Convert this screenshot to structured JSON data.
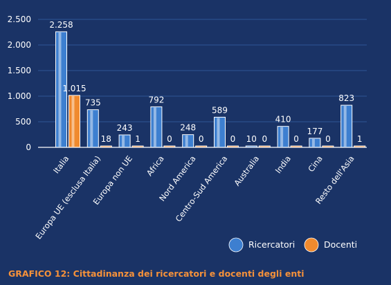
{
  "colors": {
    "background": "#1a3366",
    "ricercatori": "#3d7fd0",
    "docenti": "#f08a2e",
    "grid": "#2f5596",
    "axis": "#ffffff",
    "caption": "#f5913a"
  },
  "caption": "GRAFICO 12: Cittadinanza dei ricercatori e docenti degli enti",
  "chart_data": {
    "type": "bar",
    "title": "",
    "xlabel": "",
    "ylabel": "",
    "ylim": [
      0,
      2500
    ],
    "yticks": [
      0,
      500,
      1000,
      1500,
      2000,
      2500
    ],
    "ytick_labels": [
      "0",
      "500",
      "1.000",
      "1.500",
      "2.000",
      "2.500"
    ],
    "grid": true,
    "legend_position": "bottom-right",
    "categories": [
      "Italia",
      "Europa UE (esclusa Italia)",
      "Europa non UE",
      "Africa",
      "Nord America",
      "Centro-Sud America",
      "Australia",
      "India",
      "Cina",
      "Resto dell'Asia"
    ],
    "series": [
      {
        "name": "Ricercatori",
        "color": "#3d7fd0",
        "values": [
          2258,
          735,
          243,
          792,
          248,
          589,
          10,
          410,
          177,
          823
        ],
        "labels": [
          "2.258",
          "735",
          "243",
          "792",
          "248",
          "589",
          "10",
          "410",
          "177",
          "823"
        ]
      },
      {
        "name": "Docenti",
        "color": "#f08a2e",
        "values": [
          1015,
          18,
          1,
          0,
          0,
          0,
          0,
          0,
          0,
          1
        ],
        "labels": [
          "1.015",
          "18",
          "1",
          "0",
          "0",
          "0",
          "0",
          "0",
          "0",
          "1"
        ]
      }
    ]
  }
}
